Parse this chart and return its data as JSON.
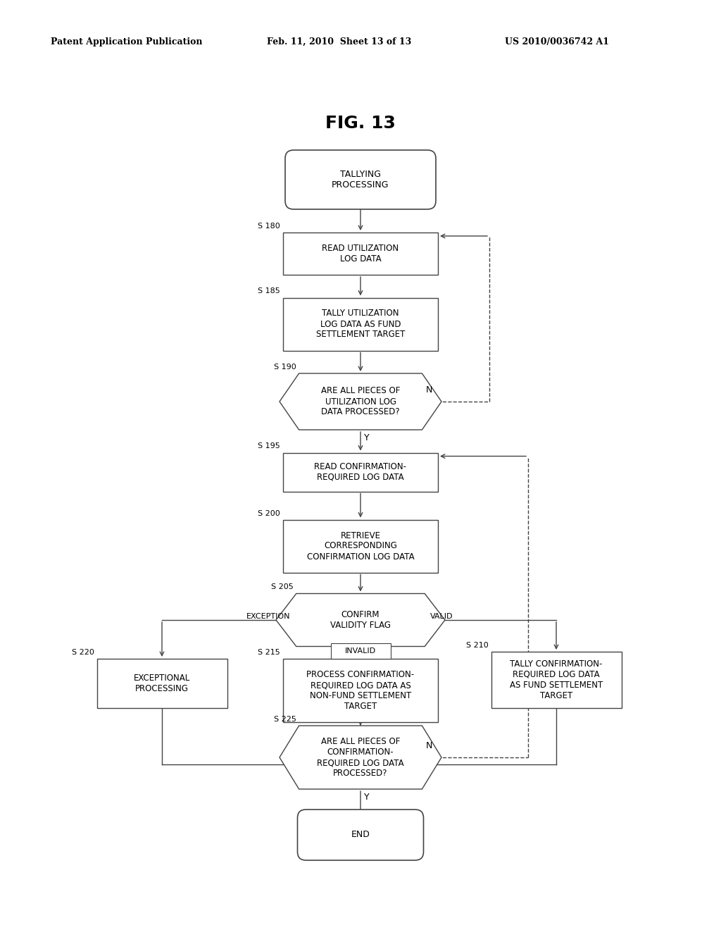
{
  "title": "FIG. 13",
  "header_left": "Patent Application Publication",
  "header_mid": "Feb. 11, 2010  Sheet 13 of 13",
  "header_right": "US 2010/0036742 A1",
  "bg_color": "#ffffff",
  "fig_width": 10.24,
  "fig_height": 13.2,
  "dpi": 100
}
